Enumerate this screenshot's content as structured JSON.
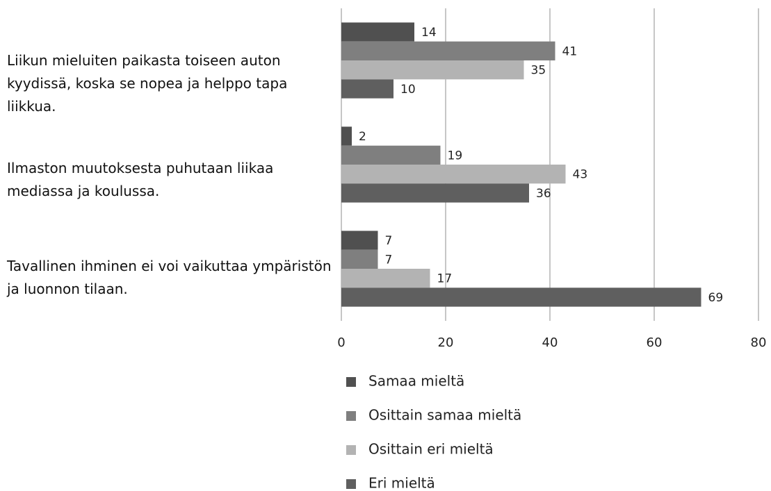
{
  "chart_data": {
    "type": "bar",
    "orientation": "horizontal",
    "categories": [
      "Liikun mieluiten paikasta toiseen auton kyydissä, koska se nopea ja helppo tapa liikkua.",
      "Ilmaston muutoksesta puhutaan liikaa mediassa ja koulussa.",
      "Tavallinen ihminen ei voi vaikuttaa ympäristön ja luonnon tilaan."
    ],
    "series": [
      {
        "name": "Samaa mieltä",
        "color": "#505050",
        "values": [
          14,
          2,
          7
        ]
      },
      {
        "name": "Osittain samaa mieltä",
        "color": "#7f7f7f",
        "values": [
          41,
          19,
          7
        ]
      },
      {
        "name": "Osittain eri mieltä",
        "color": "#b3b3b3",
        "values": [
          35,
          43,
          17
        ]
      },
      {
        "name": "Eri mieltä",
        "color": "#5f5f5f",
        "values": [
          10,
          36,
          69
        ]
      }
    ],
    "xlim": [
      0,
      80
    ],
    "xticks": [
      0,
      20,
      40,
      60,
      80
    ],
    "grid": true,
    "legend": "bottom"
  }
}
